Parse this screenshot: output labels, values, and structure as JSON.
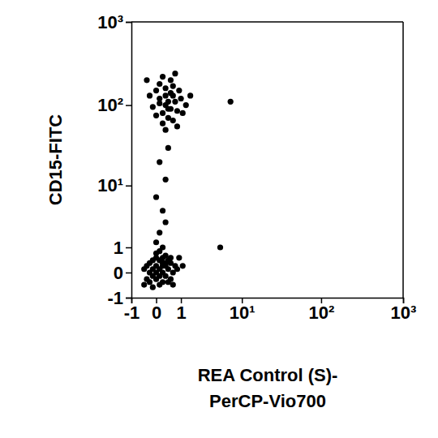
{
  "chart_data": {
    "type": "scatter",
    "xlabel": [
      "REA Control (S)-",
      "PerCP-Vio700"
    ],
    "ylabel": "CD15-FITC",
    "log": true,
    "color": "#000000",
    "marker": "circle",
    "xlim": [
      -1,
      1000
    ],
    "ylim": [
      -1,
      1000
    ],
    "xticks": [
      -1,
      0,
      1,
      {
        "value": 10,
        "label": "10¹"
      },
      {
        "value": 100,
        "label": "10²"
      },
      {
        "value": 1000,
        "label": "10³"
      }
    ],
    "yticks": [
      -1,
      0,
      1,
      {
        "value": 10,
        "label": "10¹"
      },
      {
        "value": 100,
        "label": "10²"
      },
      {
        "value": 1000,
        "label": "10³"
      }
    ],
    "x": [
      0.1,
      0.0,
      0.2,
      -0.1,
      0.3,
      0.1,
      0.2,
      -0.2,
      0.0,
      0.4,
      0.1,
      -0.1,
      0.3,
      0.2,
      -0.3,
      0.5,
      0.0,
      -0.2,
      0.4,
      0.6,
      -0.4,
      0.3,
      0.1,
      0.5,
      -0.3,
      0.7,
      0.0,
      -0.1,
      0.2,
      0.4,
      -0.2,
      0.6,
      -0.4,
      0.8,
      0.1,
      0.3,
      -0.1,
      0.5,
      0.2,
      0.0,
      0.9,
      1.1,
      0.2,
      0.0,
      0.1,
      0.3,
      0.2,
      0.0,
      0.3,
      0.1,
      0.4,
      0.3,
      0.1,
      0.5,
      0.2,
      0.6,
      0.0,
      0.4,
      0.7,
      -0.1,
      0.3,
      0.8,
      0.5,
      0.2,
      1.0,
      0.1,
      0.6,
      -0.2,
      0.9,
      0.4,
      0.3,
      1.3,
      0.0,
      0.7,
      -0.3,
      0.5,
      1.6,
      0.2,
      0.8,
      0.4,
      0.1,
      0.6,
      0.3,
      1.1,
      5,
      7
    ],
    "y": [
      0.1,
      0.2,
      0.0,
      0.1,
      0.2,
      -0.1,
      0.3,
      0.0,
      -0.2,
      0.1,
      0.4,
      -0.1,
      -0.1,
      0.5,
      0.2,
      0.3,
      0.5,
      -0.3,
      -0.3,
      0.0,
      0.1,
      0.6,
      -0.4,
      -0.2,
      -0.2,
      0.2,
      0.7,
      0.4,
      -0.3,
      0.4,
      0.3,
      -0.4,
      -0.4,
      0.1,
      0.8,
      0.3,
      -0.5,
      0.5,
      0.2,
      0.0,
      0.5,
      0.2,
      1.0,
      1.3,
      2.0,
      3.0,
      4.5,
      7,
      12,
      20,
      30,
      100,
      120,
      90,
      80,
      130,
      150,
      70,
      110,
      95,
      160,
      85,
      200,
      60,
      120,
      180,
      65,
      130,
      150,
      110,
      50,
      100,
      75,
      240,
      200,
      140,
      130,
      220,
      55,
      90,
      105,
      170,
      130,
      80,
      1.0,
      110
    ]
  }
}
